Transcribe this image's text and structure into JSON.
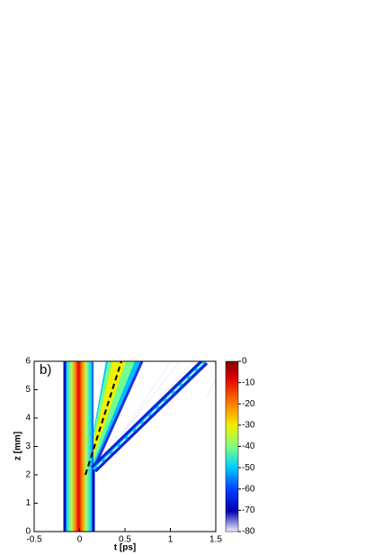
{
  "chart_data": {
    "type": "heatmap",
    "panel_label": "b)",
    "x_label": "t [ps]",
    "y_label": "z [mm]",
    "xlim": [
      -0.5,
      1.5
    ],
    "xticks": [
      -0.5,
      0,
      0.5,
      1,
      1.5
    ],
    "ylim": [
      0,
      6
    ],
    "yticks": [
      0,
      1,
      2,
      3,
      4,
      5,
      6
    ],
    "colorbar": {
      "lim": [
        -80,
        0
      ],
      "ticks": [
        0,
        -10,
        -20,
        -30,
        -40,
        -50,
        -60,
        -70,
        -80
      ]
    }
  }
}
